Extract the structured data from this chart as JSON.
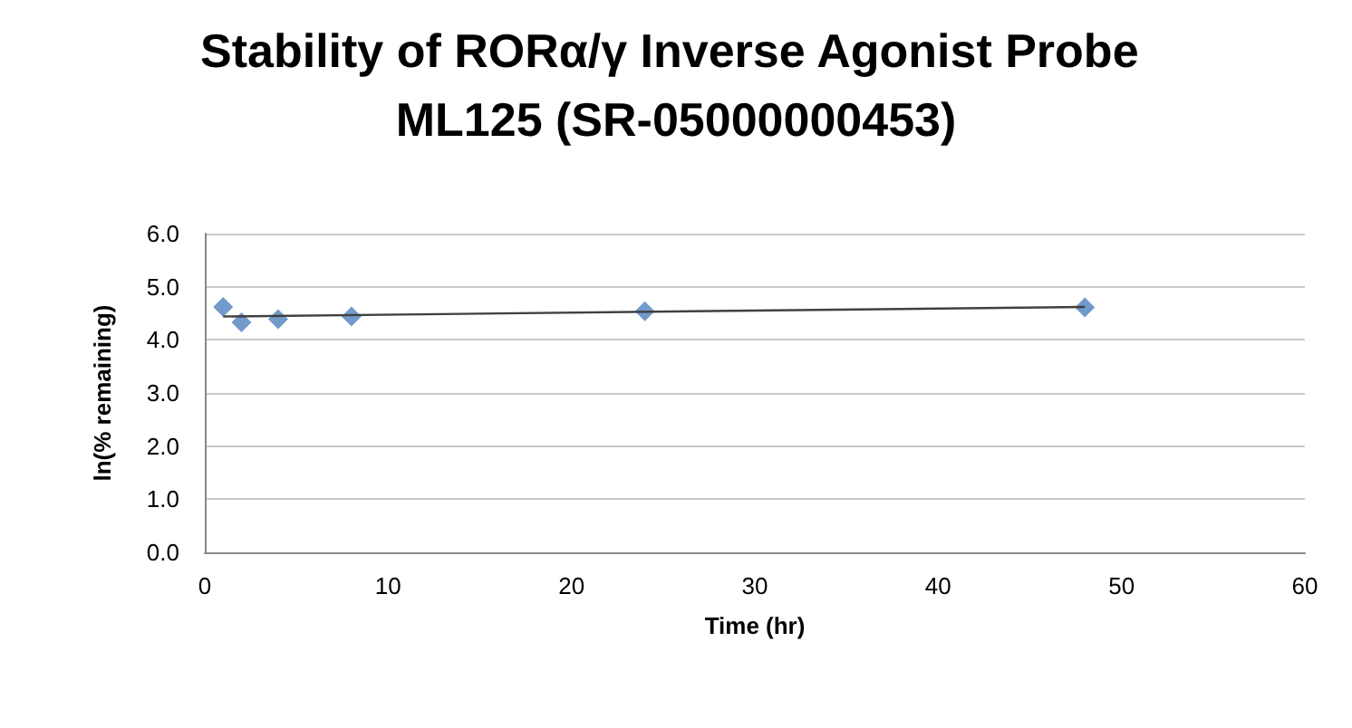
{
  "chart_data": {
    "type": "scatter",
    "title": "Stability of RORα/γ Inverse Agonist Probe ML125 (SR-05000000453)",
    "xlabel": "Time (hr)",
    "ylabel": "ln(% remaining)",
    "series": [
      {
        "color": "#4f81bd",
        "x": [
          1,
          2,
          4,
          8,
          24,
          48
        ],
        "values": [
          4.62,
          4.33,
          4.39,
          4.44,
          4.54,
          4.61
        ],
        "marker": "diamond"
      },
      {
        "type": "line",
        "color": "#404040",
        "x": [
          1,
          48
        ],
        "values": [
          4.44,
          4.62
        ],
        "marker": "none"
      }
    ],
    "xlim": [
      0,
      60
    ],
    "xticks": [
      0,
      10,
      20,
      30,
      40,
      50,
      60
    ],
    "ylim": [
      0,
      6
    ],
    "yticks": [
      {
        "value": 0,
        "label": "0.0"
      },
      {
        "value": 1,
        "label": "1.0"
      },
      {
        "value": 2,
        "label": "2.0"
      },
      {
        "value": 3,
        "label": "3.0"
      },
      {
        "value": 4,
        "label": "4.0"
      },
      {
        "value": 5,
        "label": "5.0"
      },
      {
        "value": 6,
        "label": "6.0"
      }
    ],
    "grid": "y"
  }
}
